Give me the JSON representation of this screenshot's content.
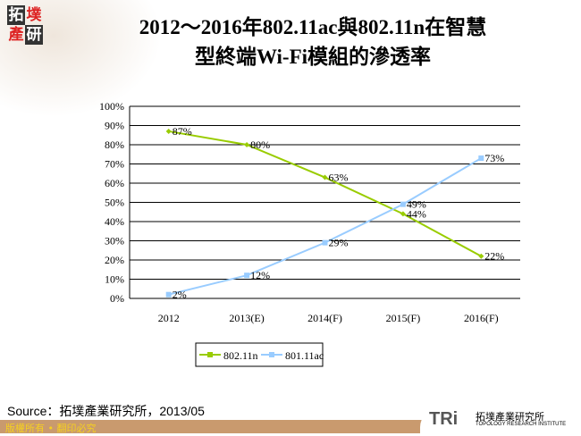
{
  "title_line1": "2012～2016年802.11ac與802.11n在智慧",
  "title_line2": "型終端Wi-Fi模組的滲透率",
  "logo": {
    "chars": [
      "拓",
      "墣",
      "產",
      "研"
    ]
  },
  "source": "Source：拓墣產業研究所，2013/05",
  "footer": "版權所有 • 翻印必究",
  "brand": {
    "mark": "TRi",
    "name": "拓墣產業研究所",
    "sub": "TOPOLOGY RESEARCH INSTITUTE"
  },
  "chart_data": {
    "type": "line",
    "categories": [
      "2012",
      "2013(E)",
      "2014(F)",
      "2015(F)",
      "2016(F)"
    ],
    "ylim": [
      0,
      100
    ],
    "yticks": [
      "0%",
      "10%",
      "20%",
      "30%",
      "40%",
      "50%",
      "60%",
      "70%",
      "80%",
      "90%",
      "100%"
    ],
    "grid": true,
    "legend": "bottom",
    "series": [
      {
        "name": "802.11n",
        "values": [
          87,
          80,
          63,
          44,
          22
        ],
        "labels": [
          "87%",
          "80%",
          "63%",
          "44%",
          "22%"
        ],
        "color": "#99cc00"
      },
      {
        "name": "801.11ac",
        "values": [
          2,
          12,
          29,
          49,
          73
        ],
        "labels": [
          "2%",
          "12%",
          "29%",
          "49%",
          "73%"
        ],
        "color": "#99ccff"
      }
    ]
  }
}
